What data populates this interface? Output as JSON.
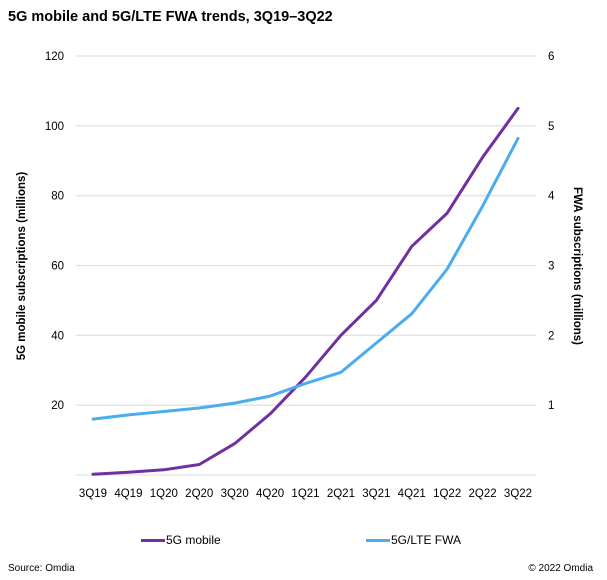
{
  "chart_data": {
    "type": "line",
    "title": "5G mobile and 5G/LTE FWA trends, 3Q19–3Q22",
    "xlabel": "",
    "ylabel": "5G mobile subscriptions (millions)",
    "y2label": "FWA subscriptions (millions)",
    "categories": [
      "3Q19",
      "4Q19",
      "1Q20",
      "2Q20",
      "3Q20",
      "4Q20",
      "1Q21",
      "2Q21",
      "3Q21",
      "4Q21",
      "1Q22",
      "2Q22",
      "3Q22"
    ],
    "ylim": [
      0,
      120
    ],
    "y2lim": [
      0,
      6
    ],
    "yticks": [
      20,
      40,
      60,
      80,
      100,
      120
    ],
    "y2ticks": [
      1,
      2,
      3,
      4,
      5,
      6
    ],
    "grid": true,
    "legend_position": "bottom",
    "series": [
      {
        "name": "5G mobile",
        "axis": "left",
        "color": "#7030A0",
        "values": [
          0.2,
          0.8,
          1.5,
          3.0,
          9.0,
          17.5,
          28.0,
          40.0,
          50.0,
          65.5,
          75.0,
          91.0,
          105.0
        ]
      },
      {
        "name": "5G/LTE FWA",
        "axis": "right",
        "color": "#4BACEE",
        "values": [
          0.8,
          0.86,
          0.91,
          0.96,
          1.03,
          1.13,
          1.31,
          1.47,
          1.89,
          2.31,
          2.95,
          3.85,
          4.82
        ]
      }
    ]
  },
  "footer": {
    "source": "Source: Omdia",
    "copyright": "© 2022 Omdia"
  }
}
